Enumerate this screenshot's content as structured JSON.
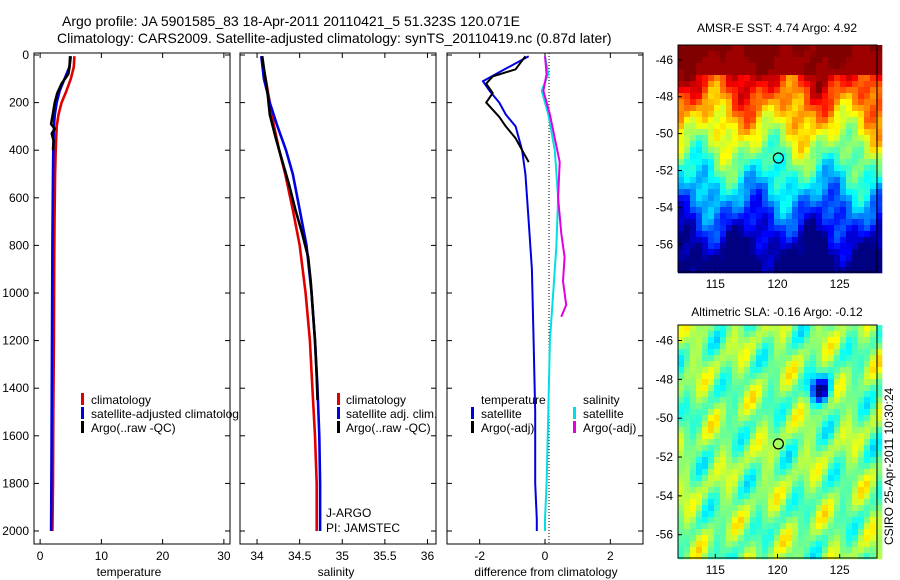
{
  "header": {
    "title_line1": "Argo profile: JA 5901585_83 18-Apr-2011 20110421_5 51.323S 120.071E",
    "title_line2": "Climatology: CARS2009. Satellite-adjusted climatology: synTS_20110419.nc (0.87d later)"
  },
  "credit": "CSIRO 25-Apr-2011 10:30:24",
  "colors": {
    "climatology": "#e00000",
    "satellite": "#0000e0",
    "argo": "#000000",
    "salinity_satellite": "#00e0e0",
    "salinity_argo": "#e000e0"
  },
  "chart_data": [
    {
      "id": "temperature",
      "type": "line",
      "xlabel": "temperature",
      "ylabel": "",
      "xlim": [
        -1,
        31
      ],
      "ylim": [
        2050,
        0
      ],
      "xticks": [
        0,
        10,
        20,
        30
      ],
      "yticks": [
        0,
        200,
        400,
        600,
        800,
        1000,
        1200,
        1400,
        1600,
        1800,
        2000
      ],
      "legend": [
        "climatology",
        "satellite-adjusted climatolog",
        "Argo(..raw -QC)"
      ],
      "series": [
        {
          "name": "climatology",
          "color": "#e00000",
          "x": [
            5.6,
            5.5,
            5.0,
            4.3,
            3.5,
            3.0,
            2.7,
            2.55,
            2.45,
            2.35,
            2.3,
            2.25,
            2.15,
            2.1,
            2.0
          ],
          "y": [
            5,
            50,
            100,
            150,
            200,
            250,
            300,
            400,
            500,
            700,
            900,
            1200,
            1500,
            1800,
            2000
          ]
        },
        {
          "name": "satellite-adjusted climatolog",
          "color": "#0000e0",
          "x": [
            5.0,
            4.8,
            4.0,
            3.2,
            2.7,
            2.4,
            2.25,
            2.15,
            2.1,
            2.0,
            1.95,
            1.9,
            1.85,
            1.8
          ],
          "y": [
            5,
            50,
            100,
            150,
            200,
            250,
            300,
            400,
            500,
            800,
            1100,
            1400,
            1700,
            2000
          ]
        },
        {
          "name": "Argo(..raw -QC)",
          "color": "#000000",
          "x": [
            4.9,
            4.8,
            4.6,
            3.5,
            2.8,
            2.4,
            2.0,
            1.8,
            2.4,
            1.9,
            2.2,
            2.1
          ],
          "y": [
            5,
            50,
            80,
            120,
            160,
            200,
            260,
            290,
            310,
            330,
            360,
            400
          ]
        }
      ]
    },
    {
      "id": "salinity",
      "type": "line",
      "xlabel": "salinity",
      "ylabel": "",
      "xlim": [
        33.8,
        36.1
      ],
      "ylim": [
        2050,
        0
      ],
      "xticks": [
        34,
        34.5,
        35,
        35.5,
        36
      ],
      "legend": [
        "climatology",
        "satellite adj. clim.",
        "Argo(..raw -QC)"
      ],
      "annotation": [
        "J-ARGO",
        "PI: JAMSTEC"
      ],
      "series": [
        {
          "name": "climatology",
          "color": "#e00000",
          "x": [
            34.05,
            34.1,
            34.15,
            34.2,
            34.26,
            34.33,
            34.42,
            34.5,
            34.57,
            34.62,
            34.65,
            34.68,
            34.7,
            34.7
          ],
          "y": [
            5,
            100,
            200,
            300,
            400,
            500,
            650,
            800,
            1000,
            1200,
            1400,
            1600,
            1800,
            2000
          ]
        },
        {
          "name": "satellite adj. clim.",
          "color": "#0000e0",
          "x": [
            34.05,
            34.08,
            34.15,
            34.24,
            34.34,
            34.42,
            34.5,
            34.58,
            34.64,
            34.68,
            34.71,
            34.73,
            34.74,
            34.74
          ],
          "y": [
            5,
            100,
            200,
            300,
            400,
            500,
            650,
            800,
            1000,
            1200,
            1400,
            1600,
            1800,
            2000
          ]
        },
        {
          "name": "Argo(..raw -QC)",
          "color": "#000000",
          "x": [
            34.06,
            34.09,
            34.12,
            34.15,
            34.22,
            34.3,
            34.38,
            34.45,
            34.53,
            34.6,
            34.63,
            34.65,
            34.68,
            34.7,
            34.71
          ],
          "y": [
            5,
            80,
            150,
            250,
            350,
            450,
            550,
            650,
            750,
            850,
            950,
            1050,
            1200,
            1350,
            1450
          ]
        }
      ]
    },
    {
      "id": "difference",
      "type": "line",
      "xlabel": "difference from climatology",
      "ylabel": "",
      "xlim": [
        -3,
        3
      ],
      "ylim": [
        2050,
        0
      ],
      "xticks": [
        -2,
        0,
        2
      ],
      "legend_left": {
        "title": "temperature",
        "entries": [
          "satellite",
          "Argo(-adj)"
        ]
      },
      "legend_right": {
        "title": "salinity",
        "entries": [
          "satellite",
          "Argo(-adj)"
        ]
      },
      "series": [
        {
          "name": "temperature satellite",
          "color": "#0000e0",
          "x": [
            -0.5,
            -1.5,
            -1.9,
            -1.7,
            -1.4,
            -1.2,
            -0.9,
            -0.7,
            -0.6,
            -0.5,
            -0.4,
            -0.35,
            -0.3,
            -0.3,
            -0.25,
            -0.25
          ],
          "y": [
            5,
            80,
            110,
            150,
            200,
            250,
            300,
            400,
            500,
            700,
            900,
            1200,
            1500,
            1800,
            1950,
            2000
          ]
        },
        {
          "name": "temperature Argo(-adj)",
          "color": "#000000",
          "x": [
            -0.6,
            -0.9,
            -1.6,
            -1.8,
            -1.6,
            -1.8,
            -1.4,
            -1.2,
            -0.9,
            -0.7,
            -0.5
          ],
          "y": [
            5,
            60,
            90,
            120,
            160,
            200,
            260,
            300,
            350,
            400,
            450
          ]
        },
        {
          "name": "salinity satellite",
          "color": "#00e0e0",
          "x": [
            0.0,
            0.1,
            -0.1,
            0.1,
            0.3,
            0.4,
            0.35,
            0.25,
            0.15,
            0.1,
            0.05,
            0.0,
            0.0
          ],
          "y": [
            5,
            80,
            150,
            250,
            400,
            600,
            800,
            1000,
            1200,
            1500,
            1800,
            1950,
            2000
          ]
        },
        {
          "name": "salinity Argo(-adj)",
          "color": "#e000e0",
          "x": [
            0.0,
            0.05,
            -0.05,
            0.15,
            0.3,
            0.45,
            0.4,
            0.5,
            0.6,
            0.55,
            0.65,
            0.5
          ],
          "y": [
            5,
            80,
            150,
            250,
            350,
            450,
            600,
            750,
            850,
            950,
            1050,
            1100
          ]
        }
      ]
    },
    {
      "id": "sst_map",
      "type": "heatmap",
      "title": "AMSR-E SST: 4.74 Argo: 4.92",
      "xlim": [
        112,
        128
      ],
      "ylim": [
        -57.5,
        -45.2
      ],
      "xticks": [
        115,
        120,
        125
      ],
      "yticks": [
        -46,
        -48,
        -50,
        -52,
        -54,
        -56
      ],
      "marker": {
        "lon": 120.071,
        "lat": -51.323
      }
    },
    {
      "id": "sla_map",
      "type": "heatmap",
      "title": "Altimetric SLA: -0.16 Argo: -0.12",
      "xlim": [
        112,
        128
      ],
      "ylim": [
        -57.2,
        -45.2
      ],
      "xticks": [
        115,
        120,
        125
      ],
      "yticks": [
        -46,
        -48,
        -50,
        -52,
        -54,
        -56
      ],
      "marker": {
        "lon": 120.071,
        "lat": -51.323
      }
    }
  ]
}
